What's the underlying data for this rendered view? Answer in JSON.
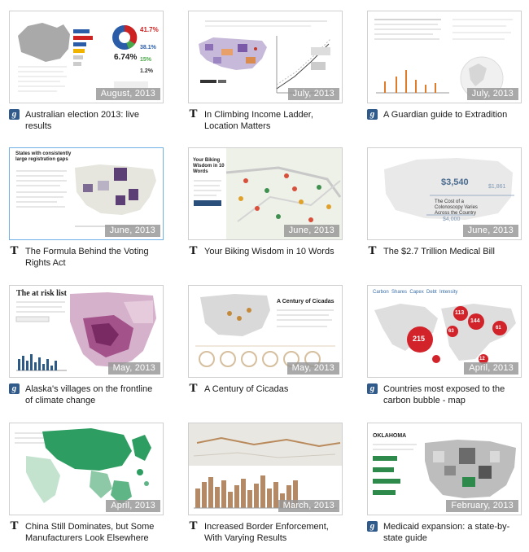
{
  "items": [
    {
      "title": "Australian election 2013: live results",
      "date": "August, 2013",
      "source_icon": "guardian-g-icon",
      "source_letter": "g"
    },
    {
      "title": "In Climbing Income Ladder, Location Matters",
      "date": "July, 2013",
      "source_icon": "nyt-t-icon",
      "source_letter": "T"
    },
    {
      "title": "A Guardian guide to Extradition",
      "date": "July, 2013",
      "source_icon": "guardian-g-icon",
      "source_letter": "g"
    },
    {
      "title": "The Formula Behind the Voting Rights Act",
      "date": "June, 2013",
      "source_icon": "nyt-t-icon",
      "source_letter": "T"
    },
    {
      "title": "Your Biking Wisdom in 10 Words",
      "date": "June, 2013",
      "source_icon": "nyt-t-icon",
      "source_letter": "T"
    },
    {
      "title": "The $2.7 Trillion Medical Bill",
      "date": "June, 2013",
      "source_icon": "nyt-t-icon",
      "source_letter": "T"
    },
    {
      "title": "Alaska's villages on the frontline of climate change",
      "date": "May, 2013",
      "source_icon": "guardian-g-icon",
      "source_letter": "g"
    },
    {
      "title": "A Century of Cicadas",
      "date": "May, 2013",
      "source_icon": "nyt-t-icon",
      "source_letter": "T"
    },
    {
      "title": "Countries most exposed to the carbon bubble - map",
      "date": "April, 2013",
      "source_icon": "guardian-g-icon",
      "source_letter": "g"
    },
    {
      "title": "China Still Dominates, but Some Manufacturers Look Elsewhere",
      "date": "April, 2013",
      "source_icon": "nyt-t-icon",
      "source_letter": "T"
    },
    {
      "title": "Increased Border Enforcement, With Varying Results",
      "date": "March, 2013",
      "source_icon": "nyt-t-icon",
      "source_letter": "T"
    },
    {
      "title": "Medicaid expansion: a state-by-state guide",
      "date": "February, 2013",
      "source_icon": "guardian-g-icon",
      "source_letter": "g"
    }
  ],
  "thumb_text": {
    "t0": {
      "pct1": "41.7%",
      "pct2": "38.1%",
      "pct3": "6.74%",
      "pct4": "15%",
      "pct5": "1.2%"
    },
    "t3": {
      "heading": "States with consistently large registration gaps"
    },
    "t4": {
      "heading": "Your Biking Wisdom in 10 Words"
    },
    "t5": {
      "value1": "$3,540",
      "value2": "$1,861",
      "value3": "$4,000",
      "caption": "The Cost of a Colonoscopy Varies Across the Country"
    },
    "t6": {
      "heading": "The at risk list"
    },
    "t7": {
      "heading": "A Century of Cicadas"
    },
    "t8": {
      "tabs": "Carbon  Shares  Capex  Debt  Intensity",
      "b1": "113",
      "b2": "144",
      "b3": "215",
      "b4": "63",
      "b5": "61",
      "b6": "12"
    },
    "t11": {
      "heading": "OKLAHOMA"
    }
  }
}
